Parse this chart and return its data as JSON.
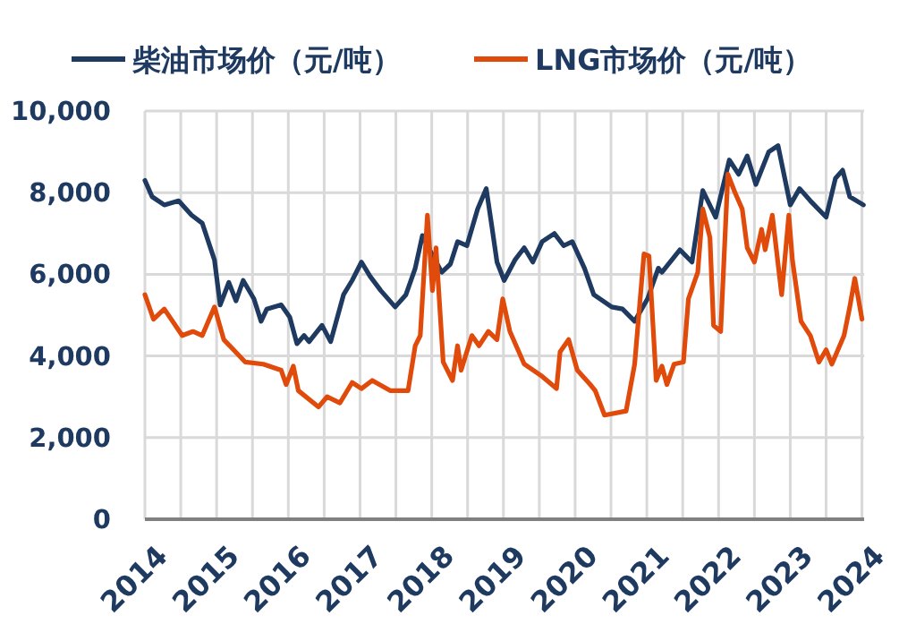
{
  "chart_data": {
    "type": "line",
    "legend": "top",
    "grid": true,
    "line_style": "solid",
    "xlim": [
      2014,
      2024.03
    ],
    "ylim": [
      0,
      10000
    ],
    "xticks": [
      2014,
      {
        "value": 2014.5,
        "label": null
      },
      2015,
      {
        "value": 2015.5,
        "label": null
      },
      2016,
      {
        "value": 2016.5,
        "label": null
      },
      2017,
      {
        "value": 2017.5,
        "label": null
      },
      2018,
      {
        "value": 2018.5,
        "label": null
      },
      2019,
      {
        "value": 2019.5,
        "label": null
      },
      2020,
      {
        "value": 2020.5,
        "label": null
      },
      2021,
      {
        "value": 2021.5,
        "label": null
      },
      2022,
      {
        "value": 2022.5,
        "label": null
      },
      2023,
      {
        "value": 2023.5,
        "label": null
      },
      2024
    ],
    "yticks": [
      {
        "value": 0,
        "label": "0"
      },
      {
        "value": 2000,
        "label": "2,000"
      },
      {
        "value": 4000,
        "label": "4,000"
      },
      {
        "value": 6000,
        "label": "6,000"
      },
      {
        "value": 8000,
        "label": "8,000"
      },
      {
        "value": 10000,
        "label": "10,000"
      }
    ],
    "series": [
      {
        "name": "柴油市场价（元/吨）",
        "color": "#1f3a60",
        "x": [
          2014.0,
          2014.1,
          2014.27,
          2014.47,
          2014.65,
          2014.8,
          2014.97,
          2015.05,
          2015.17,
          2015.27,
          2015.37,
          2015.52,
          2015.62,
          2015.7,
          2015.9,
          2016.02,
          2016.12,
          2016.22,
          2016.29,
          2016.47,
          2016.59,
          2016.77,
          2016.89,
          2017.02,
          2017.14,
          2017.29,
          2017.49,
          2017.64,
          2017.77,
          2017.87,
          2017.97,
          2018.14,
          2018.26,
          2018.36,
          2018.49,
          2018.64,
          2018.76,
          2018.84,
          2018.91,
          2019.01,
          2019.16,
          2019.29,
          2019.41,
          2019.54,
          2019.71,
          2019.84,
          2019.96,
          2020.13,
          2020.26,
          2020.51,
          2020.66,
          2020.83,
          2021.01,
          2021.16,
          2021.21,
          2021.46,
          2021.63,
          2021.78,
          2021.96,
          2022.15,
          2022.28,
          2022.4,
          2022.52,
          2022.7,
          2022.83,
          2023.0,
          2023.13,
          2023.28,
          2023.5,
          2023.63,
          2023.73,
          2023.83,
          2024.02
        ],
        "values": [
          8300,
          7900,
          7700,
          7800,
          7450,
          7250,
          6350,
          5250,
          5800,
          5350,
          5850,
          5400,
          4850,
          5150,
          5250,
          4950,
          4300,
          4500,
          4350,
          4750,
          4350,
          5500,
          5850,
          6300,
          5950,
          5600,
          5200,
          5500,
          6150,
          6950,
          6600,
          6050,
          6250,
          6800,
          6700,
          7600,
          8100,
          7150,
          6300,
          5850,
          6350,
          6650,
          6300,
          6800,
          7000,
          6700,
          6800,
          6150,
          5500,
          5200,
          5150,
          4850,
          5400,
          6150,
          6050,
          6600,
          6300,
          8050,
          7400,
          8800,
          8450,
          8900,
          8200,
          9000,
          9150,
          7700,
          8100,
          7800,
          7400,
          8350,
          8550,
          7900,
          7700
        ]
      },
      {
        "name": "LNG市场价（元/吨）",
        "color": "#e04a0a",
        "x": [
          2014.0,
          2014.12,
          2014.27,
          2014.52,
          2014.67,
          2014.8,
          2014.97,
          2015.1,
          2015.4,
          2015.65,
          2015.9,
          2015.97,
          2016.07,
          2016.14,
          2016.42,
          2016.54,
          2016.72,
          2016.89,
          2017.02,
          2017.17,
          2017.42,
          2017.67,
          2017.77,
          2017.84,
          2017.94,
          2018.01,
          2018.06,
          2018.16,
          2018.29,
          2018.36,
          2018.41,
          2018.56,
          2018.66,
          2018.79,
          2018.91,
          2018.99,
          2019.09,
          2019.29,
          2019.54,
          2019.74,
          2019.79,
          2019.91,
          2020.03,
          2020.21,
          2020.28,
          2020.41,
          2020.71,
          2020.83,
          2020.96,
          2021.03,
          2021.13,
          2021.21,
          2021.28,
          2021.38,
          2021.51,
          2021.58,
          2021.71,
          2021.78,
          2021.88,
          2021.93,
          2022.03,
          2022.13,
          2022.23,
          2022.33,
          2022.4,
          2022.5,
          2022.6,
          2022.65,
          2022.75,
          2022.88,
          2022.98,
          2023.03,
          2023.15,
          2023.28,
          2023.4,
          2023.5,
          2023.58,
          2023.75,
          2023.83,
          2023.9,
          2024.0
        ],
        "values": [
          5500,
          4900,
          5150,
          4500,
          4600,
          4500,
          5200,
          4400,
          3850,
          3800,
          3650,
          3300,
          3750,
          3150,
          2750,
          3000,
          2850,
          3350,
          3200,
          3400,
          3150,
          3150,
          4250,
          4500,
          7450,
          5600,
          6650,
          3850,
          3400,
          4250,
          3650,
          4500,
          4250,
          4600,
          4400,
          5400,
          4600,
          3800,
          3500,
          3200,
          4100,
          4400,
          3650,
          3300,
          3150,
          2550,
          2650,
          3800,
          6500,
          6450,
          3400,
          3750,
          3300,
          3800,
          3850,
          5400,
          6050,
          7600,
          6900,
          4750,
          4600,
          8450,
          8000,
          7600,
          6650,
          6300,
          7100,
          6600,
          7450,
          5500,
          7450,
          6350,
          4850,
          4500,
          3850,
          4150,
          3800,
          4500,
          5200,
          5900,
          4900
        ]
      }
    ]
  }
}
